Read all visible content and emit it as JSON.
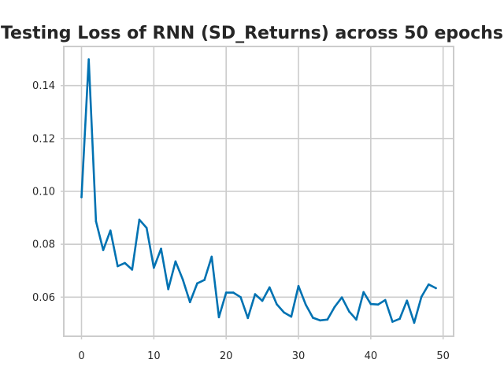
{
  "chart_data": {
    "type": "line",
    "title": "Testing Loss of RNN (SD_Returns) across 50 epochs",
    "xlabel": "",
    "ylabel": "",
    "xlim": [
      -2.45,
      51.45
    ],
    "ylim": [
      0.0452,
      0.1548
    ],
    "xticks": [
      0,
      10,
      20,
      30,
      40,
      50
    ],
    "xtick_labels": [
      "0",
      "10",
      "20",
      "30",
      "40",
      "50"
    ],
    "yticks": [
      0.06,
      0.08,
      0.1,
      0.12,
      0.14
    ],
    "ytick_labels": [
      "0.06",
      "0.08",
      "0.10",
      "0.12",
      "0.14"
    ],
    "grid": true,
    "series": [
      {
        "name": "Testing Loss",
        "color": "#0072B2",
        "x": [
          0,
          1,
          2,
          3,
          4,
          5,
          6,
          7,
          8,
          9,
          10,
          11,
          12,
          13,
          14,
          15,
          16,
          17,
          18,
          19,
          20,
          21,
          22,
          23,
          24,
          25,
          26,
          27,
          28,
          29,
          30,
          31,
          32,
          33,
          34,
          35,
          36,
          37,
          38,
          39,
          40,
          41,
          42,
          43,
          44,
          45,
          46,
          47,
          48,
          49
        ],
        "values": [
          0.0978,
          0.1499,
          0.0887,
          0.0778,
          0.0852,
          0.0717,
          0.0729,
          0.0704,
          0.0893,
          0.0862,
          0.0711,
          0.0783,
          0.063,
          0.0735,
          0.0667,
          0.0581,
          0.0652,
          0.0665,
          0.0753,
          0.0524,
          0.0617,
          0.0617,
          0.06,
          0.0521,
          0.0611,
          0.0586,
          0.0637,
          0.0573,
          0.0542,
          0.0526,
          0.0642,
          0.0572,
          0.0522,
          0.0512,
          0.0515,
          0.0563,
          0.0599,
          0.0546,
          0.0515,
          0.0619,
          0.0574,
          0.0572,
          0.0589,
          0.0507,
          0.0518,
          0.0587,
          0.0503,
          0.0601,
          0.0648,
          0.0634
        ]
      }
    ]
  }
}
